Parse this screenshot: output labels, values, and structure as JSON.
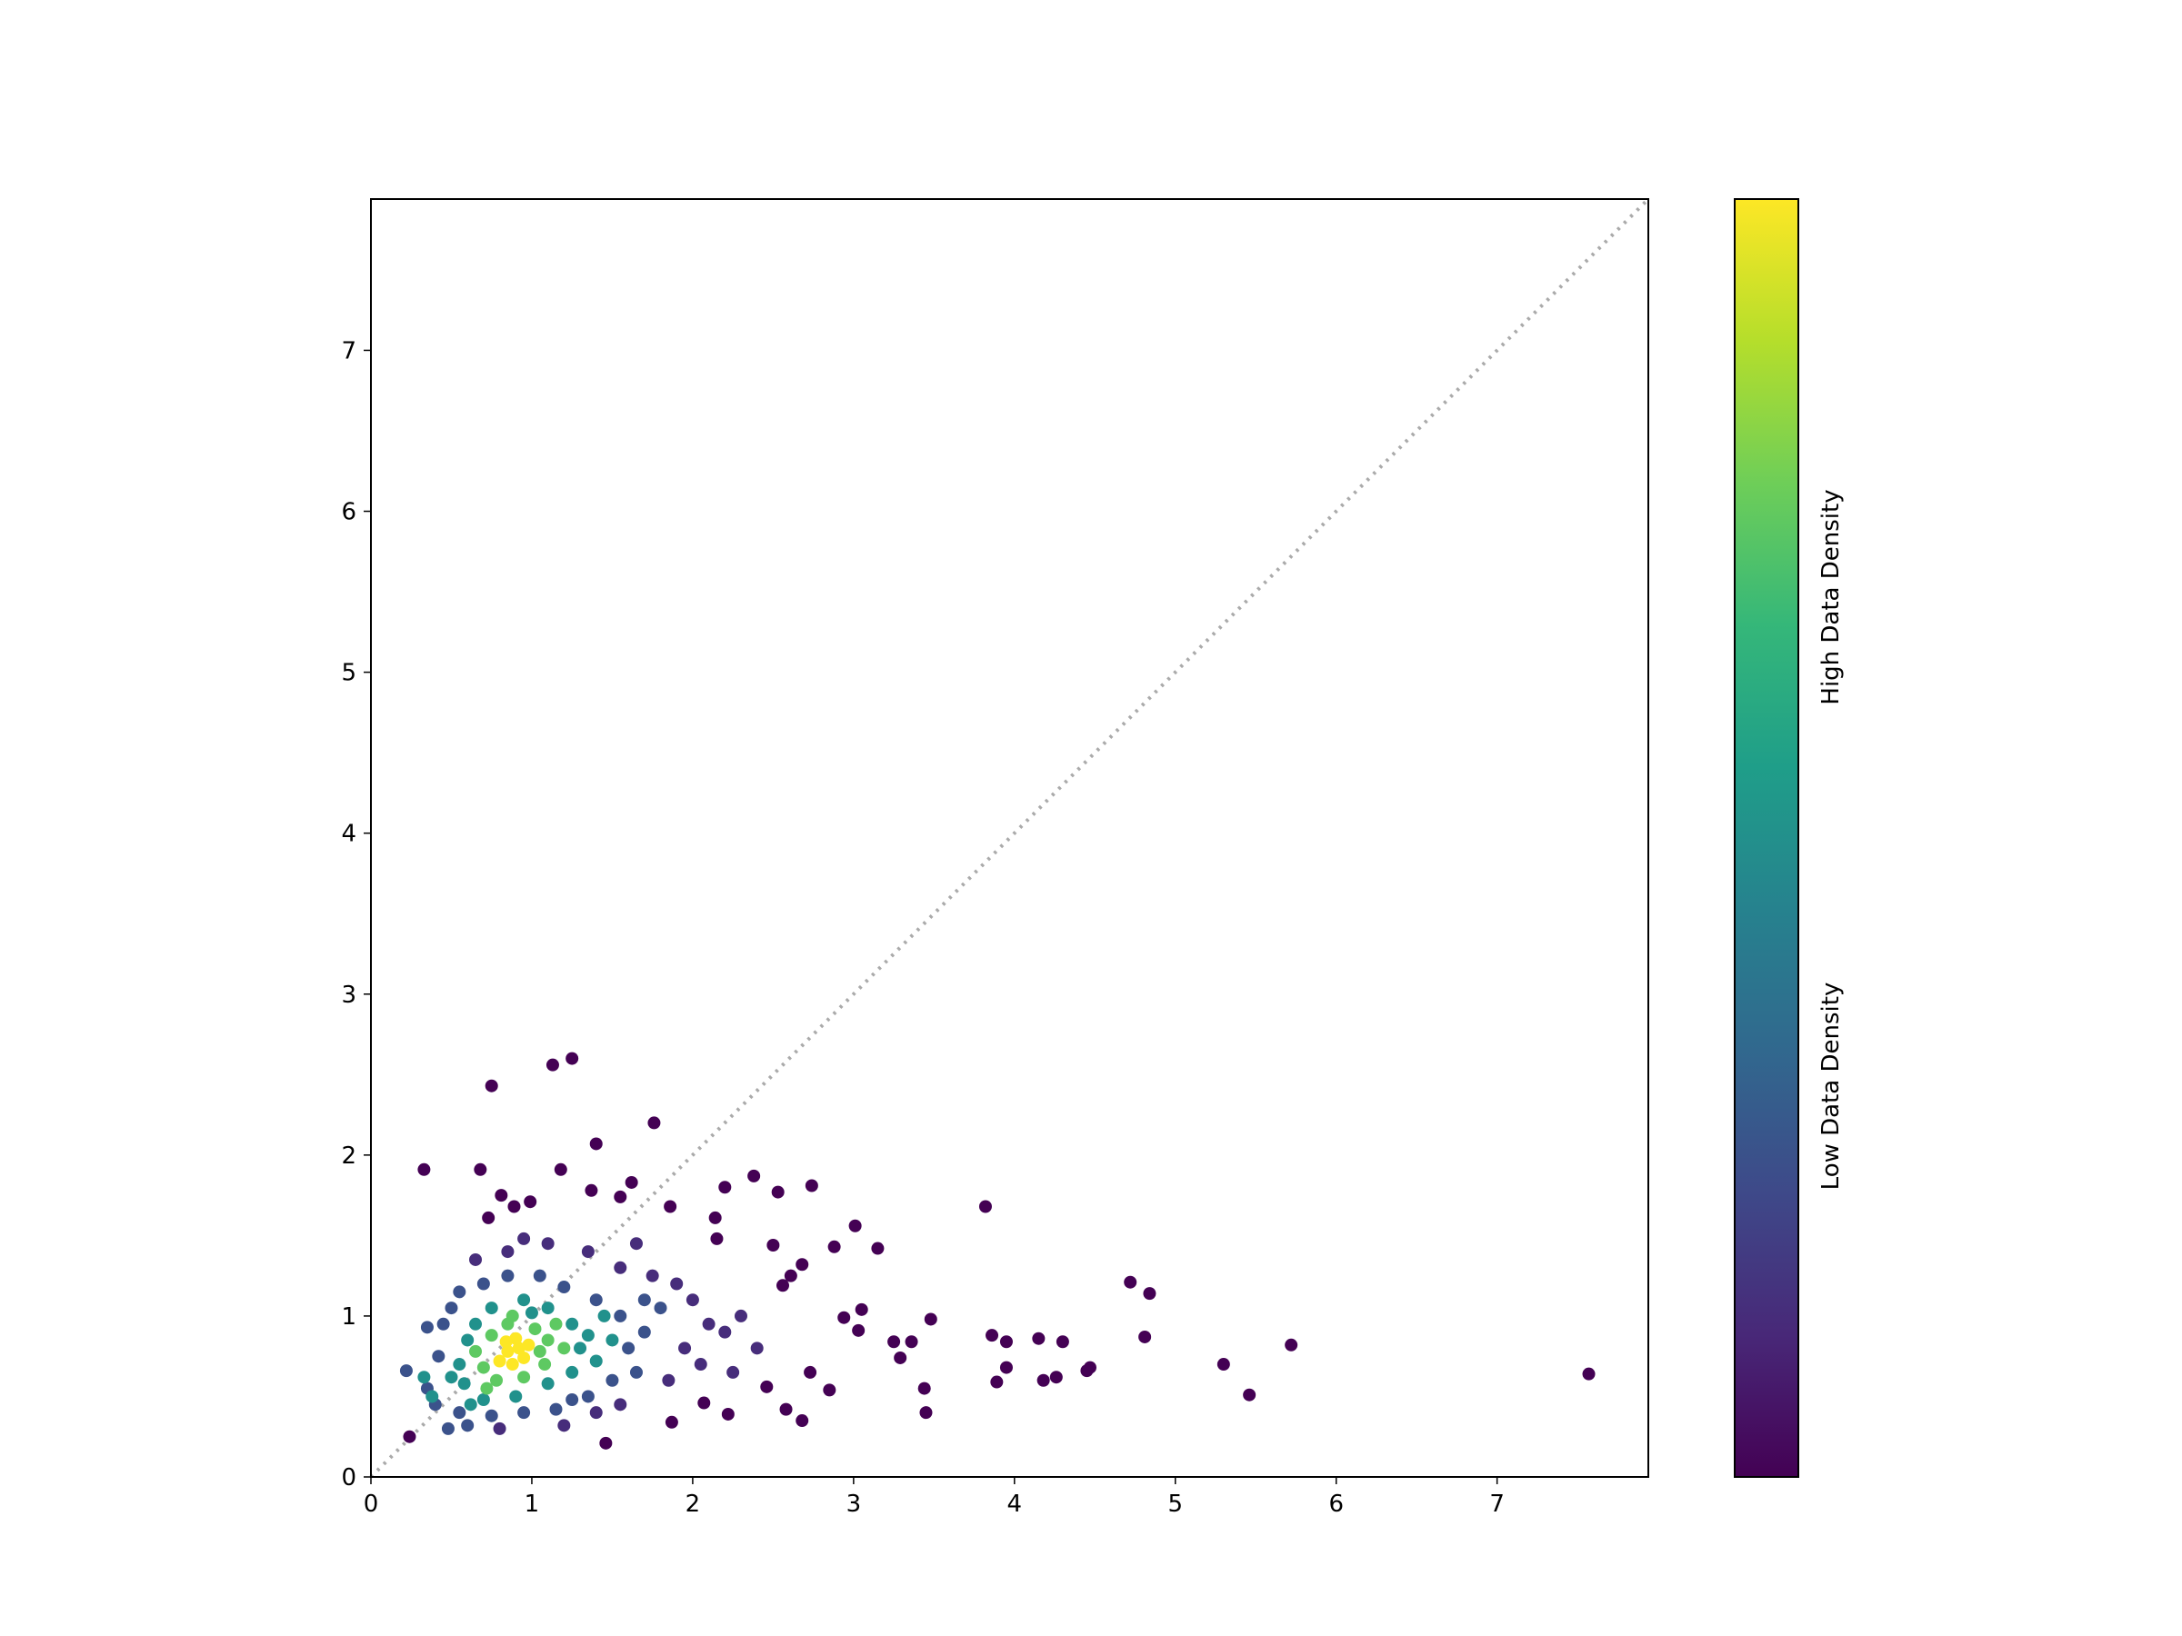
{
  "chart_data": {
    "type": "scatter",
    "xlim": [
      0,
      7.94
    ],
    "ylim": [
      0,
      7.94
    ],
    "xticks": [
      0,
      1,
      2,
      3,
      4,
      5,
      6,
      7
    ],
    "yticks": [
      0,
      1,
      2,
      3,
      4,
      5,
      6,
      7
    ],
    "diagonal": true,
    "colorbar": {
      "colors": [
        "#440154",
        "#482878",
        "#3e4989",
        "#31688e",
        "#26828e",
        "#1f9e89",
        "#35b779",
        "#6ece58",
        "#b5de2b",
        "#fde725"
      ],
      "labels": [
        "Low Data Density",
        "High Data Density"
      ]
    },
    "series": [
      {
        "color": "#440154",
        "x": [
          7.57,
          5.72,
          5.46,
          5.3,
          4.72,
          4.84,
          4.81,
          3.82,
          4.47,
          4.45,
          4.15,
          4.3,
          4.26,
          4.18,
          3.86,
          3.95,
          3.95,
          3.89,
          3.48,
          3.45,
          3.44,
          3.36,
          3.29,
          3.25,
          3.15,
          3.01,
          3.05,
          3.03,
          2.88,
          2.94,
          2.74,
          2.68,
          2.61,
          2.56,
          2.5,
          2.53,
          2.38,
          2.2,
          2.14,
          2.15,
          1.76,
          0.75,
          1.25,
          1.13,
          1.4,
          0.33,
          0.68,
          1.18,
          1.62,
          1.86,
          2.68,
          2.58,
          1.87,
          1.46,
          0.24,
          2.85,
          2.73,
          2.46,
          2.22,
          2.07,
          0.81,
          0.73,
          0.99,
          0.89,
          1.55,
          1.37
        ],
        "y": [
          0.64,
          0.82,
          0.51,
          0.7,
          1.21,
          1.14,
          0.87,
          1.68,
          0.68,
          0.66,
          0.86,
          0.84,
          0.62,
          0.6,
          0.88,
          0.84,
          0.68,
          0.59,
          0.98,
          0.4,
          0.55,
          0.84,
          0.74,
          0.84,
          1.42,
          1.56,
          1.04,
          0.91,
          1.43,
          0.99,
          1.81,
          1.32,
          1.25,
          1.19,
          1.44,
          1.77,
          1.87,
          1.8,
          1.61,
          1.48,
          2.2,
          2.43,
          2.6,
          2.56,
          2.07,
          1.91,
          1.91,
          1.91,
          1.83,
          1.68,
          0.35,
          0.42,
          0.34,
          0.21,
          0.25,
          0.54,
          0.65,
          0.56,
          0.39,
          0.46,
          1.75,
          1.61,
          1.71,
          1.68,
          1.74,
          1.78
        ]
      },
      {
        "color": "#472d7b",
        "x": [
          1.9,
          2.0,
          2.1,
          1.95,
          2.2,
          1.85,
          2.05,
          1.75,
          0.65,
          0.85,
          1.1,
          1.35,
          1.55,
          1.4,
          1.55,
          1.2,
          0.8,
          2.3,
          2.4,
          2.25,
          1.65,
          0.95
        ],
        "y": [
          1.2,
          1.1,
          0.95,
          0.8,
          0.9,
          0.6,
          0.7,
          1.25,
          1.35,
          1.4,
          1.45,
          1.4,
          1.3,
          0.4,
          0.45,
          0.32,
          0.3,
          1.0,
          0.8,
          0.65,
          1.45,
          1.48
        ]
      },
      {
        "color": "#3b528b",
        "x": [
          0.45,
          0.5,
          0.55,
          0.7,
          0.85,
          1.05,
          1.2,
          1.4,
          1.55,
          1.6,
          1.5,
          1.35,
          1.15,
          0.95,
          0.75,
          0.55,
          0.4,
          0.35,
          0.42,
          0.35,
          1.7,
          1.8,
          1.65,
          1.25,
          0.48,
          1.7,
          0.22,
          0.6
        ],
        "y": [
          0.95,
          1.05,
          1.15,
          1.2,
          1.25,
          1.25,
          1.18,
          1.1,
          1.0,
          0.8,
          0.6,
          0.5,
          0.42,
          0.4,
          0.38,
          0.4,
          0.45,
          0.55,
          0.75,
          0.93,
          0.9,
          1.05,
          0.65,
          0.48,
          0.3,
          1.1,
          0.66,
          0.32
        ]
      },
      {
        "color": "#21918c",
        "x": [
          0.55,
          0.6,
          0.65,
          0.75,
          0.95,
          1.1,
          1.25,
          1.3,
          1.25,
          1.1,
          0.9,
          0.7,
          0.58,
          0.5,
          1.35,
          1.4,
          1.0,
          0.62,
          0.33,
          0.38,
          1.5,
          1.45
        ],
        "y": [
          0.7,
          0.85,
          0.95,
          1.05,
          1.1,
          1.05,
          0.95,
          0.8,
          0.65,
          0.58,
          0.5,
          0.48,
          0.58,
          0.62,
          0.88,
          0.72,
          1.02,
          0.45,
          0.62,
          0.5,
          0.85,
          1.0
        ]
      },
      {
        "color": "#5ec962",
        "x": [
          0.7,
          0.75,
          1.05,
          1.02,
          0.85,
          0.78,
          0.95,
          1.1,
          0.65,
          1.08,
          0.72,
          0.88,
          1.15,
          1.2
        ],
        "y": [
          0.68,
          0.88,
          0.78,
          0.92,
          0.95,
          0.6,
          0.62,
          0.85,
          0.78,
          0.7,
          0.55,
          1.0,
          0.95,
          0.8
        ]
      },
      {
        "color": "#fde725",
        "x": [
          0.85,
          0.92,
          0.95,
          0.88,
          0.8,
          0.9,
          0.98,
          0.84
        ],
        "y": [
          0.78,
          0.8,
          0.74,
          0.7,
          0.72,
          0.86,
          0.82,
          0.84
        ]
      }
    ]
  }
}
